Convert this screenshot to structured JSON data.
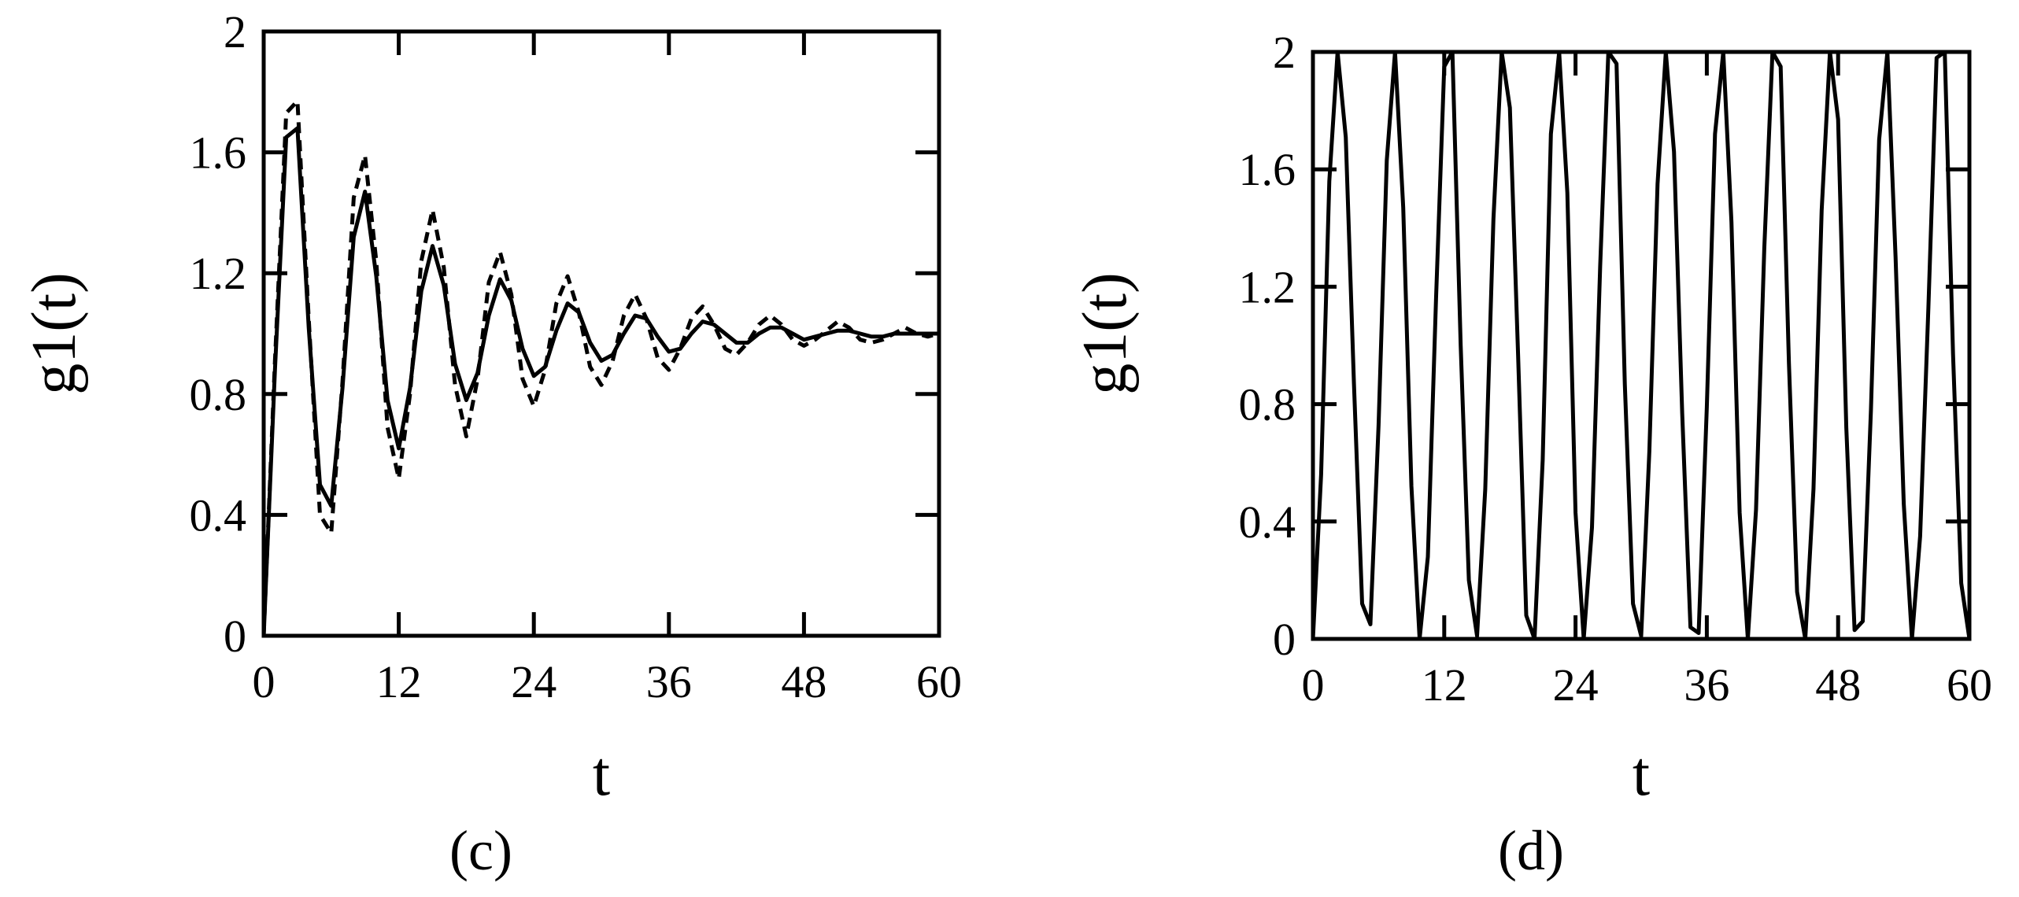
{
  "chart_data": [
    {
      "type": "line",
      "panel_label": "(c)",
      "xlabel": "t",
      "ylabel": "g1(t)",
      "xlim": [
        0,
        60
      ],
      "ylim": [
        0,
        2
      ],
      "xticks": [
        "0",
        "12",
        "24",
        "36",
        "48",
        "60"
      ],
      "yticks": [
        "0",
        "0.4",
        "0.8",
        "1.2",
        "1.6",
        "2"
      ],
      "grid": false,
      "series": [
        {
          "style": "solid",
          "x": [
            0,
            1,
            2,
            3,
            4,
            5,
            6,
            7,
            8,
            9,
            10,
            11,
            12,
            13,
            14,
            15,
            16,
            17,
            18,
            19,
            20,
            21,
            22,
            23,
            24,
            25,
            26,
            27,
            28,
            29,
            30,
            31,
            32,
            33,
            34,
            35,
            36,
            37,
            38,
            39,
            40,
            41,
            42,
            43,
            44,
            45,
            46,
            47,
            48,
            49,
            50,
            51,
            52,
            53,
            54,
            55,
            56,
            57,
            58,
            59,
            60
          ],
          "y": [
            0,
            0.88,
            1.65,
            1.68,
            1.02,
            0.5,
            0.43,
            0.82,
            1.32,
            1.47,
            1.19,
            0.78,
            0.62,
            0.82,
            1.14,
            1.29,
            1.16,
            0.9,
            0.78,
            0.87,
            1.06,
            1.18,
            1.11,
            0.95,
            0.86,
            0.89,
            1.01,
            1.1,
            1.07,
            0.97,
            0.91,
            0.93,
            1.0,
            1.06,
            1.05,
            0.99,
            0.94,
            0.95,
            1.0,
            1.04,
            1.03,
            1.0,
            0.97,
            0.97,
            1.0,
            1.02,
            1.02,
            1.0,
            0.98,
            0.99,
            1.0,
            1.01,
            1.01,
            1.0,
            0.99,
            0.99,
            1.0,
            1.0,
            1.0,
            1.0,
            1.0
          ]
        },
        {
          "style": "dashed",
          "x": [
            0,
            1,
            2,
            3,
            4,
            5,
            6,
            7,
            8,
            9,
            10,
            11,
            12,
            13,
            14,
            15,
            16,
            17,
            18,
            19,
            20,
            21,
            22,
            23,
            24,
            25,
            26,
            27,
            28,
            29,
            30,
            31,
            32,
            33,
            34,
            35,
            36,
            37,
            38,
            39,
            40,
            41,
            42,
            43,
            44,
            45,
            46,
            47,
            48,
            49,
            50,
            51,
            52,
            53,
            54,
            55,
            56,
            57,
            58,
            59,
            60
          ],
          "y": [
            0,
            0.91,
            1.73,
            1.77,
            1.05,
            0.4,
            0.34,
            0.84,
            1.45,
            1.59,
            1.24,
            0.69,
            0.52,
            0.8,
            1.24,
            1.41,
            1.22,
            0.83,
            0.66,
            0.85,
            1.17,
            1.27,
            1.13,
            0.85,
            0.76,
            0.88,
            1.1,
            1.19,
            1.07,
            0.89,
            0.83,
            0.91,
            1.06,
            1.13,
            1.05,
            0.92,
            0.88,
            0.95,
            1.05,
            1.09,
            1.03,
            0.95,
            0.93,
            0.97,
            1.03,
            1.06,
            1.03,
            0.98,
            0.96,
            0.98,
            1.01,
            1.04,
            1.02,
            0.98,
            0.97,
            0.98,
            1.0,
            1.02,
            1.0,
            0.99,
            1.0
          ]
        }
      ]
    },
    {
      "type": "line",
      "panel_label": "(d)",
      "xlabel": "t",
      "ylabel": "g1(t)",
      "xlim": [
        0,
        60
      ],
      "ylim": [
        0,
        2
      ],
      "xticks": [
        "0",
        "12",
        "24",
        "36",
        "48",
        "60"
      ],
      "yticks": [
        "0",
        "0.4",
        "0.8",
        "1.2",
        "1.6",
        "2"
      ],
      "grid": false,
      "series": [
        {
          "style": "solid",
          "clipped_at_top": true,
          "x": [
            0,
            0.75,
            1.5,
            2.25,
            3.0,
            3.75,
            4.5,
            5.25,
            6.0,
            6.75,
            7.5,
            8.25,
            9.0,
            9.75,
            10.5,
            11.25,
            12.0,
            12.75,
            13.5,
            14.25,
            15.0,
            15.75,
            16.5,
            17.25,
            18.0,
            18.75,
            19.5,
            20.25,
            21.0,
            21.75,
            22.5,
            23.25,
            24.0,
            24.75,
            25.5,
            26.25,
            27.0,
            27.75,
            28.5,
            29.25,
            30.0,
            30.75,
            31.5,
            32.25,
            33.0,
            33.75,
            34.5,
            35.25,
            36.0,
            36.75,
            37.5,
            38.25,
            39.0,
            39.75,
            40.5,
            41.25,
            42.0,
            42.75,
            43.5,
            44.25,
            45.0,
            45.75,
            46.5,
            47.25,
            48.0,
            48.75,
            49.5,
            50.25,
            51.0,
            51.75,
            52.5,
            53.25,
            54.0,
            54.75,
            55.5,
            56.25,
            57.0,
            57.75,
            58.5,
            59.25,
            60.0
          ],
          "y": [
            0,
            0.56,
            1.56,
            2.0,
            1.71,
            0.87,
            0.12,
            0.05,
            0.73,
            1.63,
            2.0,
            1.47,
            0.52,
            0.0,
            0.28,
            1.16,
            1.95,
            2.0,
            1.0,
            0.2,
            0.01,
            0.51,
            1.43,
            2.0,
            1.81,
            0.97,
            0.08,
            0.0,
            0.61,
            1.72,
            2.0,
            1.52,
            0.43,
            0.0,
            0.38,
            1.27,
            2.0,
            1.96,
            0.87,
            0.12,
            0.01,
            0.64,
            1.55,
            2.0,
            1.66,
            0.77,
            0.04,
            0.02,
            0.79,
            1.72,
            2.0,
            1.42,
            0.43,
            0.0,
            0.44,
            1.33,
            2.0,
            1.95,
            0.94,
            0.16,
            0.0,
            0.51,
            1.46,
            2.0,
            1.77,
            0.72,
            0.03,
            0.06,
            0.78,
            1.7,
            2.0,
            1.3,
            0.46,
            0.0,
            0.35,
            1.13,
            1.98,
            2.0,
            0.97,
            0.19,
            0.0
          ]
        }
      ]
    }
  ]
}
